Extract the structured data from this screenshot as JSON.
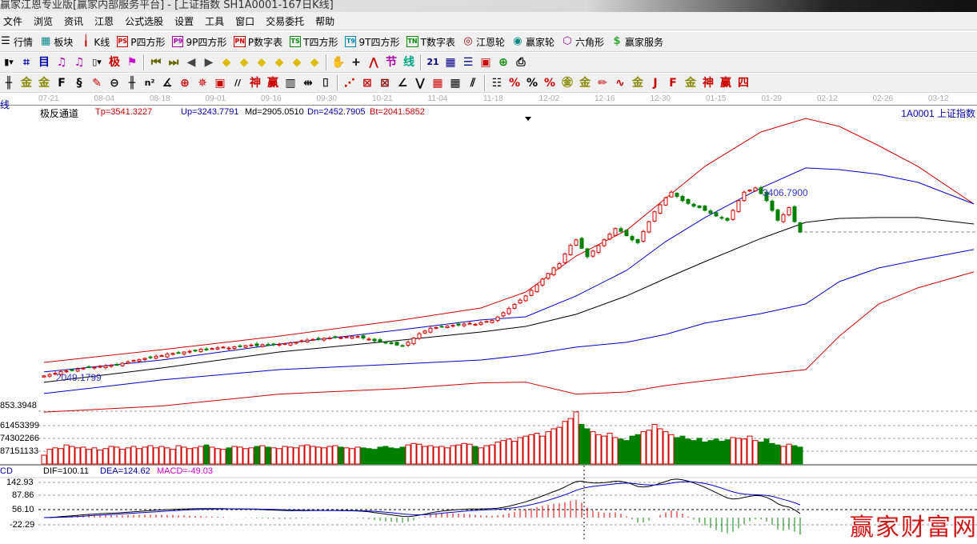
{
  "window": {
    "title": "赢家江恩专业版[赢家内部服务平台] - [上证指数 SH1A0001-167日K线]"
  },
  "menu": [
    "文件",
    "浏览",
    "资讯",
    "江恩",
    "公式选股",
    "设置",
    "工具",
    "窗口",
    "交易委托",
    "帮助"
  ],
  "toolbar1": [
    {
      "label": "行情",
      "icon": "list-icon",
      "glyph": "☰",
      "color": "#000"
    },
    {
      "label": "板块",
      "icon": "blocks-icon",
      "glyph": "▦",
      "color": "#0a8a8a"
    },
    {
      "label": "K线",
      "icon": "candlestick-icon",
      "glyph": "╽",
      "color": "#c00"
    },
    {
      "label": "P四方形",
      "icon": "ps-icon",
      "glyph": "PS",
      "color": "#c00"
    },
    {
      "label": "9P四方形",
      "icon": "p9-icon",
      "glyph": "P9",
      "color": "#a0a"
    },
    {
      "label": "P数字表",
      "icon": "pn-icon",
      "glyph": "PN",
      "color": "#c00"
    },
    {
      "label": "T四方形",
      "icon": "ts-icon",
      "glyph": "TS",
      "color": "#080"
    },
    {
      "label": "9T四方形",
      "icon": "t9-icon",
      "glyph": "T9",
      "color": "#08a"
    },
    {
      "label": "T数字表",
      "icon": "tn-icon",
      "glyph": "TN",
      "color": "#080"
    },
    {
      "label": "江恩轮",
      "icon": "gann-wheel-icon",
      "glyph": "◎",
      "color": "#800"
    },
    {
      "label": "赢家轮",
      "icon": "winner-wheel-icon",
      "glyph": "◉",
      "color": "#088"
    },
    {
      "label": "六角形",
      "icon": "hexagon-icon",
      "glyph": "⬡",
      "color": "#a0a"
    },
    {
      "label": "赢家服务",
      "icon": "dollar-icon",
      "glyph": "$",
      "color": "#3a3"
    }
  ],
  "toolbar2": [
    {
      "icon": "bar-dropdown-icon",
      "glyph": "▮▾",
      "color": "#000"
    },
    {
      "icon": "grid-icon",
      "glyph": "⌗",
      "color": "#00a"
    },
    {
      "icon": "document-icon",
      "glyph": "目",
      "color": "#00a"
    },
    {
      "icon": "chart3-icon",
      "glyph": "♫",
      "color": "#a0a"
    },
    {
      "icon": "chart9-icon",
      "glyph": "♫",
      "color": "#a0a"
    },
    {
      "icon": "candle-dropdown-icon",
      "glyph": "▯▾",
      "color": "#000"
    },
    {
      "icon": "extreme-icon",
      "glyph": "极",
      "color": "#c00"
    },
    {
      "icon": "flag-icon",
      "glyph": "⚑",
      "color": "#c0c"
    },
    {
      "icon": "first-icon",
      "glyph": "⏮",
      "color": "#660"
    },
    {
      "icon": "last-icon",
      "glyph": "⏭",
      "color": "#660"
    },
    {
      "icon": "prev-icon",
      "glyph": "◀",
      "color": "#444"
    },
    {
      "icon": "next-icon",
      "glyph": "▶",
      "color": "#444"
    },
    {
      "icon": "left-icon",
      "glyph": "◆",
      "color": "#db0"
    },
    {
      "icon": "right-icon",
      "glyph": "◆",
      "color": "#db0"
    },
    {
      "icon": "expand-icon",
      "glyph": "◆",
      "color": "#db0"
    },
    {
      "icon": "shrink-icon",
      "glyph": "◆",
      "color": "#db0"
    },
    {
      "icon": "zoom-in-icon",
      "glyph": "◆",
      "color": "#db0"
    },
    {
      "icon": "zoom-out-icon",
      "glyph": "◆",
      "color": "#db0"
    },
    {
      "icon": "hand-icon",
      "glyph": "✋",
      "color": "#000"
    },
    {
      "icon": "crosshair-icon",
      "glyph": "+",
      "color": "#000"
    },
    {
      "icon": "line-tool-icon",
      "glyph": "⋀",
      "color": "#c00"
    },
    {
      "icon": "section-icon",
      "glyph": "节",
      "color": "#a0a"
    },
    {
      "icon": "money-icon",
      "glyph": "线",
      "color": "#0a8"
    },
    {
      "icon": "calendar-icon",
      "glyph": "21",
      "color": "#008"
    },
    {
      "icon": "calculator-icon",
      "glyph": "▦",
      "color": "#008"
    },
    {
      "icon": "notepad-icon",
      "glyph": "☰",
      "color": "#008"
    },
    {
      "icon": "save-icon",
      "glyph": "▣",
      "color": "#c00"
    },
    {
      "icon": "network-icon",
      "glyph": "⊕",
      "color": "#080"
    },
    {
      "icon": "print-icon",
      "glyph": "⎙",
      "color": "#000"
    }
  ],
  "toolbar3": [
    {
      "icon": "grid-lines-icon",
      "glyph": "╫",
      "color": "#000"
    },
    {
      "icon": "gold-a-icon",
      "glyph": "金",
      "color": "#880"
    },
    {
      "icon": "gold-b-icon",
      "glyph": "金",
      "color": "#880"
    },
    {
      "icon": "fib-icon",
      "glyph": "F",
      "color": "#000"
    },
    {
      "icon": "spiral-icon",
      "glyph": "§",
      "color": "#000"
    },
    {
      "icon": "pen-icon",
      "glyph": "✎",
      "color": "#c00"
    },
    {
      "icon": "circle-icon",
      "glyph": "⊖",
      "color": "#000"
    },
    {
      "icon": "cycle-icon",
      "glyph": "╫",
      "color": "#000"
    },
    {
      "icon": "square-n-icon",
      "glyph": "n²",
      "color": "#000"
    },
    {
      "icon": "angle-icon",
      "glyph": "∡",
      "color": "#000"
    },
    {
      "icon": "target-icon",
      "glyph": "⊕",
      "color": "#c00"
    },
    {
      "icon": "radar-icon",
      "glyph": "✵",
      "color": "#c00"
    },
    {
      "icon": "box-icon",
      "glyph": "▣",
      "color": "#c00"
    },
    {
      "icon": "parallel-icon",
      "glyph": "//",
      "color": "#000"
    },
    {
      "icon": "god-icon",
      "glyph": "神",
      "color": "#c00"
    },
    {
      "icon": "win-icon",
      "glyph": "赢",
      "color": "#c00"
    },
    {
      "icon": "ruler-icon",
      "glyph": "▥",
      "color": "#000"
    },
    {
      "icon": "span-icon",
      "glyph": "⇹",
      "color": "#000"
    },
    {
      "icon": "frame-icon",
      "glyph": "⌷",
      "color": "#000"
    },
    {
      "icon": "fan-icon",
      "glyph": "⋰",
      "color": "#c00"
    },
    {
      "icon": "gann-box-icon",
      "glyph": "⊠",
      "color": "#c00"
    },
    {
      "icon": "gann-fan-icon",
      "glyph": "⊠",
      "color": "#800"
    },
    {
      "icon": "angle-line-icon",
      "glyph": "∠",
      "color": "#000"
    },
    {
      "icon": "zigzag-icon",
      "glyph": "⋁",
      "color": "#000"
    },
    {
      "icon": "square-grid-icon",
      "glyph": "▦",
      "color": "#c00"
    },
    {
      "icon": "matrix-icon",
      "glyph": "▦",
      "color": "#000"
    },
    {
      "icon": "hatch-icon",
      "glyph": "⫽",
      "color": "#000"
    },
    {
      "icon": "table-icon",
      "glyph": "☷",
      "color": "#000"
    },
    {
      "icon": "percent-line-icon",
      "glyph": "%",
      "color": "#c00"
    },
    {
      "icon": "percent-icon",
      "glyph": "%",
      "color": "#000"
    },
    {
      "icon": "percent-list-icon",
      "glyph": "%",
      "color": "#c00"
    },
    {
      "icon": "gold-circle-icon",
      "glyph": "㊎",
      "color": "#880"
    },
    {
      "icon": "gold-line-icon",
      "glyph": "金",
      "color": "#880"
    },
    {
      "icon": "pencil-line-icon",
      "glyph": "✏",
      "color": "#c00"
    },
    {
      "icon": "wave-icon",
      "glyph": "∿",
      "color": "#c00"
    },
    {
      "icon": "gold-bar-icon",
      "glyph": "金",
      "color": "#880"
    },
    {
      "icon": "j-angle-icon",
      "glyph": "J",
      "color": "#c00"
    },
    {
      "icon": "f-angle-icon",
      "glyph": "F",
      "color": "#c00"
    },
    {
      "icon": "gold-angle-icon",
      "glyph": "金",
      "color": "#880"
    },
    {
      "icon": "god-angle-icon",
      "glyph": "神",
      "color": "#c00"
    },
    {
      "icon": "win-angle-icon",
      "glyph": "赢",
      "color": "#c00"
    },
    {
      "icon": "four-angle-icon",
      "glyph": "四",
      "color": "#c00"
    }
  ],
  "date_axis": [
    "07-21",
    "08-04",
    "08-18",
    "09-01",
    "09-16",
    "09-30",
    "10-21",
    "11-04",
    "11-18",
    "12-02",
    "12-16",
    "12-30",
    "01-15",
    "01-29",
    "02-12",
    "02-26",
    "03-12"
  ],
  "left_label": "线",
  "indicator": {
    "name": "极反通道",
    "tp": "Tp=3541.3227",
    "up": "Up=3243.7791",
    "md": "Md=2905.0510",
    "dn": "Dn=2452.7905",
    "bt": "Bt=2041.5852"
  },
  "symbol": "1A0001  上证指数",
  "colors": {
    "up": "#d00000",
    "down": "#008000",
    "top_band": "#d00000",
    "up_band": "#0000c8",
    "mid_band": "#000000",
    "dn_band": "#0000c8",
    "bottom_band": "#d00000",
    "background": "#ffffff"
  },
  "chart_data": {
    "type": "candlestick",
    "max_label": "3406.7900",
    "min_label": "2049.1799",
    "closes": [
      2050,
      2060,
      2068,
      2080,
      2085,
      2090,
      2098,
      2105,
      2110,
      2112,
      2118,
      2120,
      2125,
      2130,
      2140,
      2150,
      2160,
      2165,
      2175,
      2180,
      2190,
      2195,
      2205,
      2210,
      2215,
      2220,
      2225,
      2230,
      2240,
      2235,
      2245,
      2250,
      2255,
      2248,
      2258,
      2262,
      2266,
      2270,
      2265,
      2272,
      2268,
      2274,
      2275,
      2280,
      2285,
      2290,
      2300,
      2305,
      2310,
      2312,
      2318,
      2320,
      2325,
      2322,
      2328,
      2330,
      2330,
      2320,
      2312,
      2300,
      2295,
      2285,
      2280,
      2270,
      2265,
      2290,
      2320,
      2350,
      2370,
      2390,
      2395,
      2400,
      2405,
      2410,
      2412,
      2420,
      2425,
      2418,
      2430,
      2438,
      2445,
      2470,
      2500,
      2530,
      2560,
      2590,
      2620,
      2660,
      2700,
      2740,
      2780,
      2820,
      2850,
      2920,
      2980,
      3020,
      2960,
      2900,
      2940,
      2980,
      3020,
      3060,
      3100,
      3080,
      3050,
      3020,
      3000,
      3080,
      3150,
      3220,
      3270,
      3320,
      3360,
      3330,
      3300,
      3280,
      3260,
      3250,
      3230,
      3210,
      3190,
      3175,
      3160,
      3230,
      3300,
      3360,
      3375,
      3390,
      3350,
      3300,
      3230,
      3160,
      3200,
      3250,
      3150,
      3075
    ],
    "volume_millions": [
      60,
      100,
      110,
      105,
      130,
      120,
      110,
      115,
      100,
      110,
      95,
      105,
      120,
      115,
      100,
      110,
      120,
      105,
      115,
      125,
      110,
      120,
      110,
      100,
      125,
      115,
      105,
      110,
      120,
      130,
      115,
      105,
      100,
      110,
      120,
      115,
      105,
      110,
      120,
      125,
      115,
      110,
      105,
      120,
      115,
      110,
      125,
      130,
      120,
      115,
      110,
      120,
      125,
      115,
      110,
      105,
      115,
      110,
      105,
      100,
      115,
      120,
      110,
      105,
      115,
      130,
      140,
      135,
      120,
      125,
      115,
      120,
      110,
      125,
      130,
      140,
      135,
      120,
      110,
      125,
      130,
      150,
      160,
      170,
      155,
      180,
      190,
      200,
      210,
      190,
      220,
      240,
      250,
      290,
      310,
      355,
      270,
      240,
      220,
      200,
      190,
      210,
      180,
      170,
      160,
      190,
      200,
      220,
      230,
      270,
      240,
      220,
      200,
      180,
      190,
      170,
      160,
      175,
      150,
      160,
      170,
      155,
      165,
      180,
      175,
      170,
      190,
      160,
      150,
      170,
      140,
      130,
      120,
      135,
      125,
      115
    ],
    "band_index": [
      0,
      21,
      42,
      64,
      78,
      86,
      95,
      104,
      111,
      118,
      128,
      136,
      142,
      149,
      156,
      166
    ],
    "bands": {
      "tp": [
        2146,
        2237,
        2334,
        2449,
        2534,
        2648,
        2905,
        3088,
        3316,
        3544,
        3789,
        3886,
        3829,
        3692,
        3544,
        3276
      ],
      "up": [
        2078,
        2163,
        2277,
        2380,
        2449,
        2471,
        2620,
        2802,
        3008,
        3179,
        3390,
        3533,
        3521,
        3487,
        3430,
        3276
      ],
      "md": [
        2004,
        2106,
        2220,
        2306,
        2363,
        2403,
        2489,
        2620,
        2745,
        2865,
        3030,
        3145,
        3173,
        3179,
        3179,
        3133
      ],
      "dn": [
        1924,
        2021,
        2095,
        2135,
        2163,
        2198,
        2255,
        2289,
        2346,
        2426,
        2494,
        2563,
        2722,
        2819,
        2876,
        2951
      ],
      "bt": [
        1792,
        1835,
        1920,
        1960,
        2000,
        2005,
        1920,
        1935,
        1981,
        2015,
        2061,
        2095,
        2334,
        2562,
        2677,
        2791
      ]
    },
    "volume_axis": [
      "853.3948",
      "61453399",
      "74302266",
      "87151133"
    ],
    "macd": {
      "label": "CD",
      "dif": "DIF=100.11",
      "dea": "DEA=124.62",
      "macd": "MACD=-49.03",
      "axis": [
        "142.93",
        "87.86",
        "56.10",
        "-22.29"
      ]
    }
  },
  "watermark": "赢家财富网"
}
